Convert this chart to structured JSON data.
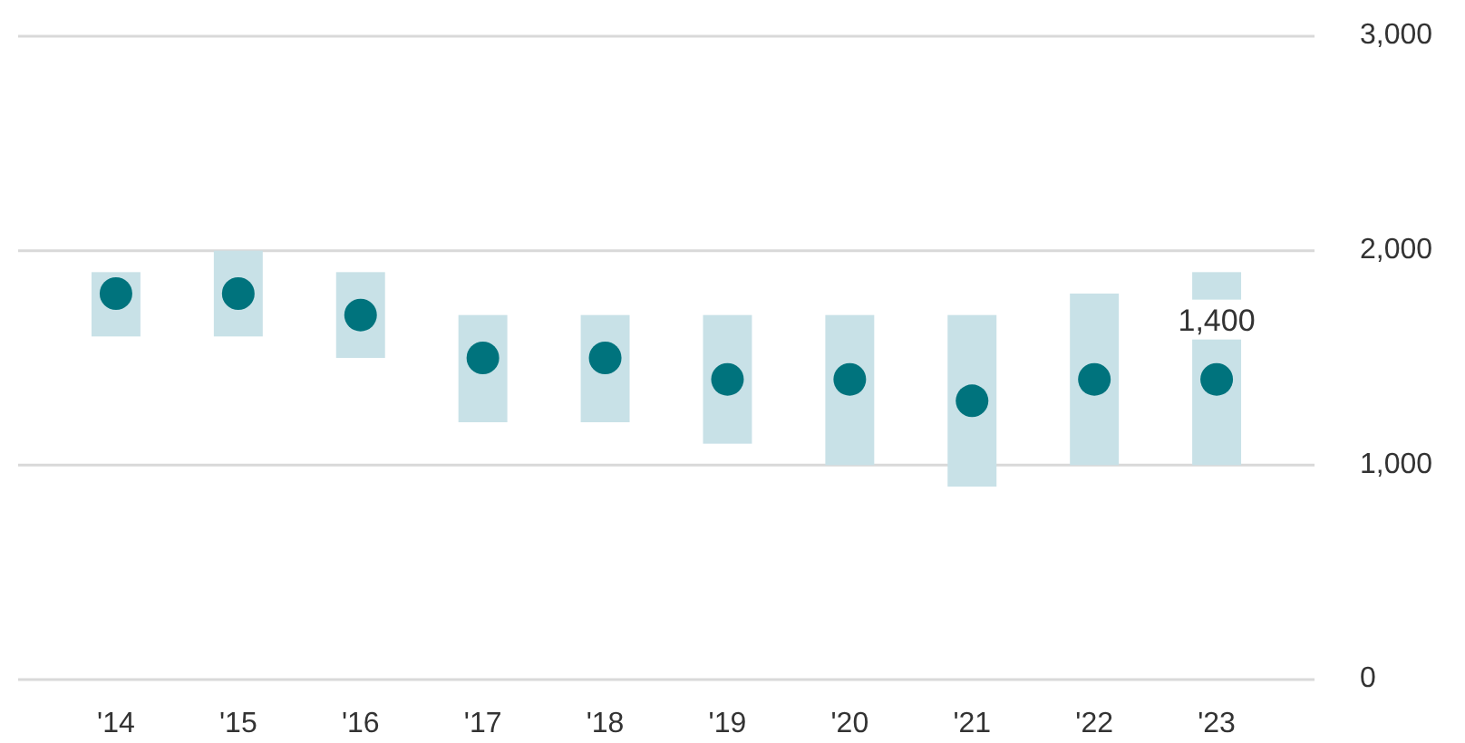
{
  "chart_data": {
    "type": "bar",
    "categories": [
      "'14",
      "'15",
      "'16",
      "'17",
      "'18",
      "'19",
      "'20",
      "'21",
      "'22",
      "'23"
    ],
    "series": [
      {
        "color": "#c8e1e7",
        "base": [
          1600,
          1600,
          1500,
          1200,
          1200,
          1100,
          1000,
          900,
          1000,
          1000
        ],
        "values": [
          300,
          400,
          400,
          500,
          500,
          600,
          700,
          800,
          800,
          900
        ]
      },
      {
        "type": "scatter",
        "color": "#00737d",
        "values": [
          1800,
          1800,
          1700,
          1500,
          1500,
          1400,
          1400,
          1300,
          1400,
          1400
        ],
        "value_labels": [
          null,
          null,
          null,
          null,
          null,
          null,
          null,
          null,
          null,
          "1,400"
        ]
      }
    ],
    "ylim": [
      0,
      3000
    ],
    "yticks": [
      {
        "value": 0,
        "label": "0"
      },
      {
        "value": 1000,
        "label": "1,000"
      },
      {
        "value": 2000,
        "label": "2,000"
      },
      {
        "value": 3000,
        "label": "3,000"
      }
    ],
    "grid": "y",
    "marker": "circle"
  }
}
